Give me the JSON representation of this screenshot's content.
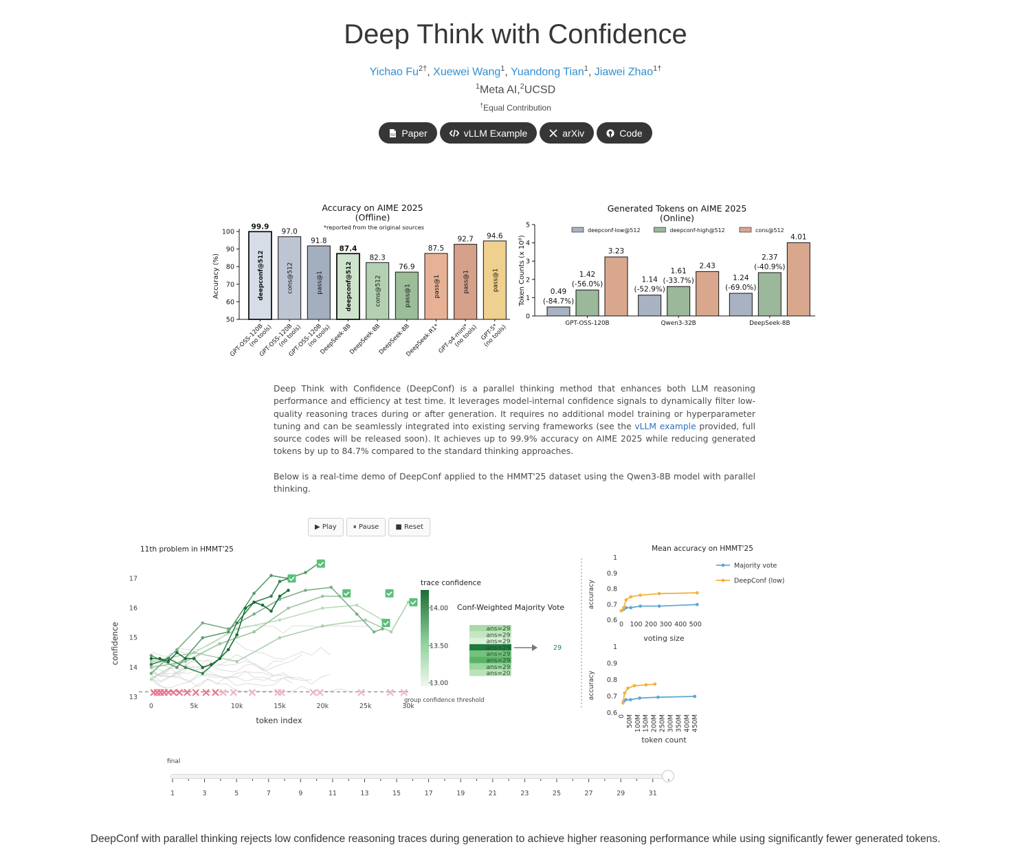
{
  "header": {
    "title": "Deep Think with Confidence",
    "authors": [
      {
        "name": "Yichao Fu",
        "sup": "2†"
      },
      {
        "name": "Xuewei Wang",
        "sup": "1"
      },
      {
        "name": "Yuandong Tian",
        "sup": "1"
      },
      {
        "name": "Jiawei Zhao",
        "sup": "1†"
      }
    ],
    "affiliations": [
      {
        "sup": "1",
        "name": "Meta AI,"
      },
      {
        "sup": "2",
        "name": "UCSD"
      }
    ],
    "equal_sup": "†",
    "equal_note": "Equal Contribution",
    "links": [
      {
        "label": "Paper",
        "icon": "pdf-icon"
      },
      {
        "label": "vLLM Example",
        "icon": "code-icon"
      },
      {
        "label": "arXiv",
        "icon": "arxiv-icon"
      },
      {
        "label": "Code",
        "icon": "github-icon"
      }
    ]
  },
  "chart_data": [
    {
      "type": "bar",
      "title": "Accuracy on AIME 2025",
      "subtitle": "(Offline)",
      "note": "*reported from the original sources",
      "ylabel": "Accuracy (%)",
      "ylim": [
        50,
        100
      ],
      "yticks": [
        "50",
        "60",
        "70",
        "80",
        "90",
        "100"
      ],
      "bars": [
        {
          "category": "GPT-OSS-120B\n(no tools)",
          "method": "deepconf@512",
          "value": 99.9,
          "label": "99.9",
          "color": "#d7dde6",
          "bold": true
        },
        {
          "category": "GPT-OSS-120B\n(no tools)",
          "method": "cons@512",
          "value": 97.0,
          "label": "97.0",
          "color": "#bcc5d1",
          "bold": false
        },
        {
          "category": "GPT-OSS-120B\n(no tools)",
          "method": "pass@1",
          "value": 91.8,
          "label": "91.8",
          "color": "#a3aebe",
          "bold": false
        },
        {
          "category": "DeepSeek-8B",
          "method": "deepconf@512",
          "value": 87.4,
          "label": "87.4",
          "color": "#cfe4cd",
          "bold": true
        },
        {
          "category": "DeepSeek-8B",
          "method": "cons@512",
          "value": 82.3,
          "label": "82.3",
          "color": "#b4d0b2",
          "bold": false
        },
        {
          "category": "DeepSeek-8B",
          "method": "pass@1",
          "value": 76.9,
          "label": "76.9",
          "color": "#9bbd98",
          "bold": false
        },
        {
          "category": "DeepSeek-R1*",
          "method": "pass@1",
          "value": 87.5,
          "label": "87.5",
          "color": "#e7b196",
          "bold": false
        },
        {
          "category": "GPT-o4-mini*\n(no tools)",
          "method": "pass@1",
          "value": 92.7,
          "label": "92.7",
          "color": "#d6a18a",
          "bold": false
        },
        {
          "category": "GPT-5*\n(no tools)",
          "method": "pass@1",
          "value": 94.6,
          "label": "94.6",
          "color": "#f0d08f",
          "bold": false
        }
      ]
    },
    {
      "type": "bar",
      "title": "Generated Tokens on AIME 2025",
      "subtitle": "(Online)",
      "ylabel": "Token Counts (x 10⁸)",
      "ylim": [
        0,
        5
      ],
      "yticks": [
        "0",
        "1",
        "2",
        "3",
        "4",
        "5"
      ],
      "categories": [
        "GPT-OSS-120B",
        "Qwen3-32B",
        "DeepSeek-8B"
      ],
      "series": [
        {
          "name": "deepconf-low@512",
          "color": "#a8b2c2",
          "values": [
            0.49,
            1.14,
            1.24
          ],
          "labels": [
            "0.49",
            "1.14",
            "1.24"
          ],
          "sublabels": [
            "(-84.7%)",
            "(-52.9%)",
            "(-69.0%)"
          ]
        },
        {
          "name": "deepconf-high@512",
          "color": "#9bb89a",
          "values": [
            1.42,
            1.61,
            2.37
          ],
          "labels": [
            "1.42",
            "1.61",
            "2.37"
          ],
          "sublabels": [
            "(-56.0%)",
            "(-33.7%)",
            "(-40.9%)"
          ]
        },
        {
          "name": "cons@512",
          "color": "#d9a78e",
          "values": [
            3.23,
            2.43,
            4.01
          ],
          "labels": [
            "3.23",
            "2.43",
            "4.01"
          ],
          "sublabels": [
            "",
            "",
            ""
          ]
        }
      ]
    },
    {
      "type": "line",
      "title": "11th problem in HMMT'25",
      "xlabel": "token index",
      "ylabel": "confidence",
      "xlim": [
        0,
        30000
      ],
      "ylim": [
        13,
        17.4
      ],
      "xticks": [
        "0",
        "5k",
        "10k",
        "15k",
        "20k",
        "25k",
        "30k"
      ],
      "yticks": [
        "13",
        "14",
        "15",
        "16",
        "17"
      ],
      "threshold": 13.18,
      "threshold_label": "group confidence threshold",
      "colorbar_title": "trace confidence",
      "colorbar_ticks": [
        "14.00",
        "13.50",
        "13.00"
      ],
      "rejected_x": [
        300,
        700,
        1100,
        1500,
        2000,
        2600,
        3300,
        4200,
        5200,
        6400,
        7500,
        8400,
        9600,
        11800,
        14800,
        15200,
        18900,
        19700,
        24500,
        27900,
        29500
      ],
      "traces": [
        {
          "conf": 14.2,
          "x": [
            0,
            1000,
            2000,
            3000,
            4000,
            5000,
            6000,
            7000,
            8000,
            9000,
            10000,
            11000,
            12000,
            13000,
            14000,
            15000,
            16000
          ],
          "y": [
            14.3,
            14.3,
            14.2,
            14.5,
            14.3,
            14.3,
            14.0,
            14.1,
            14.3,
            14.6,
            15.1,
            16.0,
            16.2,
            16.1,
            15.9,
            16.4,
            16.6
          ]
        },
        {
          "conf": 14.0,
          "x": [
            0,
            2000,
            4000,
            6000,
            8000,
            10000,
            12000,
            14000,
            15000,
            16000
          ],
          "y": [
            14.1,
            14.3,
            14.0,
            13.8,
            14.3,
            15.5,
            16.2,
            16.4,
            16.9,
            17.0
          ]
        },
        {
          "conf": 13.8,
          "x": [
            0,
            3000,
            6000,
            9000,
            12000,
            14000,
            16000,
            18000,
            19500
          ],
          "y": [
            14.4,
            14.0,
            15.0,
            15.2,
            16.5,
            17.1,
            17.0,
            17.2,
            17.5
          ]
        },
        {
          "conf": 13.6,
          "x": [
            0,
            3000,
            6000,
            9000,
            12000,
            15000,
            18000,
            21000,
            24000,
            26000,
            27000
          ],
          "y": [
            13.8,
            14.6,
            15.5,
            15.3,
            15.8,
            16.3,
            16.6,
            16.7,
            15.8,
            15.2,
            15.3
          ]
        },
        {
          "conf": 13.4,
          "x": [
            0,
            4000,
            8000,
            12000,
            16000,
            20000,
            22000
          ],
          "y": [
            14.0,
            14.2,
            14.8,
            15.2,
            16.0,
            16.4,
            16.4
          ]
        },
        {
          "conf": 13.3,
          "x": [
            0,
            5000,
            10000,
            15000,
            20000,
            25000,
            28000,
            30000
          ],
          "y": [
            14.2,
            14.5,
            14.2,
            15.0,
            15.4,
            15.6,
            15.2,
            16.2
          ]
        },
        {
          "conf": 13.2,
          "x": [
            0,
            5000,
            10000,
            15000,
            20000,
            24000,
            27000
          ],
          "y": [
            13.6,
            14.5,
            15.3,
            15.6,
            16.0,
            16.1,
            15.6
          ]
        }
      ],
      "checkmarks": [
        [
          16400,
          17.0
        ],
        [
          19800,
          17.5
        ],
        [
          22800,
          16.5
        ],
        [
          27800,
          16.5
        ],
        [
          30600,
          16.2
        ],
        [
          27400,
          15.5
        ]
      ]
    },
    {
      "type": "line",
      "title": "Mean accuracy on HMMT'25",
      "panels": [
        {
          "xlabel": "voting size",
          "ylabel": "accuracy",
          "xlim": [
            0,
            520
          ],
          "ylim": [
            0.6,
            1.0
          ],
          "xticks": [
            "0",
            "100",
            "200",
            "300",
            "400",
            "500"
          ],
          "yticks": [
            "0.6",
            "0.7",
            "0.8",
            "0.9",
            "1"
          ],
          "series": [
            {
              "name": "Majority vote",
              "color": "#5fa8d3",
              "x": [
                0,
                16,
                32,
                64,
                128,
                256,
                512
              ],
              "y": [
                0.66,
                0.67,
                0.68,
                0.68,
                0.69,
                0.69,
                0.7
              ]
            },
            {
              "name": "DeepConf (low)",
              "color": "#f2b33d",
              "x": [
                0,
                16,
                32,
                64,
                128,
                256,
                512
              ],
              "y": [
                0.66,
                0.68,
                0.73,
                0.75,
                0.76,
                0.77,
                0.775
              ]
            }
          ]
        },
        {
          "xlabel": "token count",
          "ylabel": "accuracy",
          "xlim": [
            0,
            470
          ],
          "ylim": [
            0.6,
            1.0
          ],
          "xticks": [
            "0",
            "50M",
            "100M",
            "150M",
            "200M",
            "250M",
            "300M",
            "350M",
            "400M",
            "450M"
          ],
          "yticks": [
            "0.6",
            "0.7",
            "0.8",
            "0.9",
            "1"
          ],
          "series": [
            {
              "name": "Majority vote",
              "color": "#5fa8d3",
              "x": [
                14,
                28,
                56,
                112,
                224,
                448
              ],
              "y": [
                0.67,
                0.68,
                0.68,
                0.69,
                0.695,
                0.7
              ]
            },
            {
              "name": "DeepConf (low)",
              "color": "#f2b33d",
              "x": [
                10,
                20,
                40,
                80,
                150,
                205
              ],
              "y": [
                0.66,
                0.72,
                0.75,
                0.765,
                0.77,
                0.775
              ]
            }
          ]
        }
      ]
    }
  ],
  "description": {
    "para1_before": "Deep Think with Confidence (DeepConf) is a parallel thinking method that enhances both LLM reasoning performance and efficiency at test time. It leverages model-internal confidence signals to dynamically filter low-quality reasoning traces during or after generation. It requires no additional model training or hyperparameter tuning and can be seamlessly integrated into existing serving frameworks (see the ",
    "para1_link": "vLLM example",
    "para1_after": " provided, full source codes will be released soon). It achieves up to 99.9% accuracy on AIME 2025 while reducing generated tokens by up to 84.7% compared to the standard thinking approaches.",
    "para2": "Below is a real-time demo of DeepConf applied to the HMMT'25 dataset using the Qwen3-8B model with parallel thinking."
  },
  "demo": {
    "controls": {
      "play": "▶ Play",
      "pause": "⏸ Pause",
      "reset": "■ Reset"
    },
    "vote_title": "Conf-Weighted Majority Vote",
    "vote_rows": [
      "ans=29",
      "ans=29",
      "ans=29",
      "ans=29",
      "ans=29",
      "ans=29",
      "ans=29",
      "ans=20"
    ],
    "vote_result": "29",
    "slider": {
      "label": "final",
      "ticks": [
        "1",
        "3",
        "5",
        "7",
        "9",
        "11",
        "13",
        "15",
        "17",
        "19",
        "21",
        "23",
        "25",
        "27",
        "29",
        "31"
      ],
      "current": 32,
      "max": 32
    }
  },
  "caption": "DeepConf with parallel thinking rejects low confidence reasoning traces during generation to achieve higher reasoning performance while using significantly fewer generated tokens."
}
